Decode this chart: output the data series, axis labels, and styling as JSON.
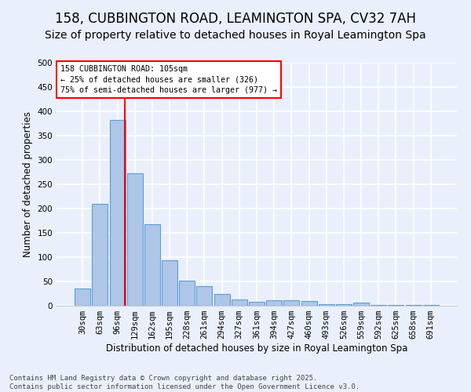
{
  "title": "158, CUBBINGTON ROAD, LEAMINGTON SPA, CV32 7AH",
  "subtitle": "Size of property relative to detached houses in Royal Leamington Spa",
  "xlabel": "Distribution of detached houses by size in Royal Leamington Spa",
  "ylabel": "Number of detached properties",
  "footnote": "Contains HM Land Registry data © Crown copyright and database right 2025.\nContains public sector information licensed under the Open Government Licence v3.0.",
  "categories": [
    "30sqm",
    "63sqm",
    "96sqm",
    "129sqm",
    "162sqm",
    "195sqm",
    "228sqm",
    "261sqm",
    "294sqm",
    "327sqm",
    "361sqm",
    "394sqm",
    "427sqm",
    "460sqm",
    "493sqm",
    "526sqm",
    "559sqm",
    "592sqm",
    "625sqm",
    "658sqm",
    "691sqm"
  ],
  "values": [
    35,
    210,
    383,
    273,
    168,
    93,
    52,
    40,
    24,
    13,
    8,
    12,
    12,
    10,
    3,
    3,
    6,
    1,
    2,
    2,
    2
  ],
  "bar_color": "#aec6e8",
  "bar_edge_color": "#5a9fd4",
  "vline_color": "red",
  "vline_x": 2.425,
  "annotation_text": "158 CUBBINGTON ROAD: 105sqm\n← 25% of detached houses are smaller (326)\n75% of semi-detached houses are larger (977) →",
  "annotation_box_color": "white",
  "annotation_box_edge_color": "red",
  "ylim": [
    0,
    500
  ],
  "yticks": [
    0,
    50,
    100,
    150,
    200,
    250,
    300,
    350,
    400,
    450,
    500
  ],
  "background_color": "#eaf0fb",
  "grid_color": "white",
  "title_fontsize": 12,
  "subtitle_fontsize": 10,
  "label_fontsize": 8.5,
  "tick_fontsize": 7.5,
  "footnote_fontsize": 6.5
}
